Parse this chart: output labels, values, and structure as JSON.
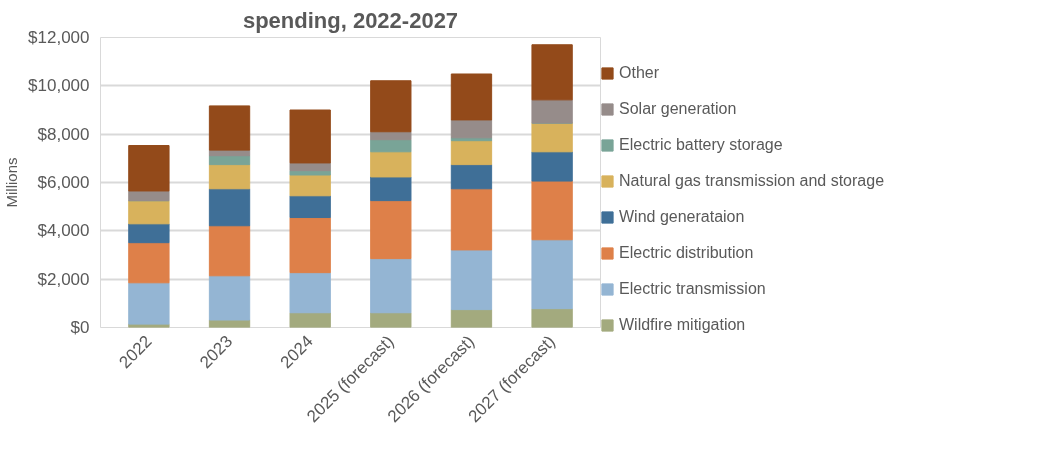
{
  "chart_data": {
    "type": "bar",
    "title": "spending, 2022-2027",
    "ylabel": "Millions",
    "categories": [
      "2022",
      "2023",
      "2024",
      "2025 (forecast)",
      "2026 (forecast)",
      "2027 (forecast)"
    ],
    "stacked": true,
    "series": [
      {
        "name": "Wildfire mitigation",
        "color": "#a3aa7e",
        "values": [
          140,
          310,
          610,
          610,
          740,
          780
        ]
      },
      {
        "name": "Electric transmission",
        "color": "#94b5d3",
        "values": [
          1710,
          1830,
          1660,
          2240,
          2470,
          2850
        ]
      },
      {
        "name": "Electric distribution",
        "color": "#de8049",
        "values": [
          1660,
          2070,
          2280,
          2400,
          2530,
          2430
        ]
      },
      {
        "name": "Wind generataion",
        "color": "#3f6f97",
        "values": [
          780,
          1530,
          900,
          980,
          1000,
          1210
        ]
      },
      {
        "name": "Natural gas transmission and storage",
        "color": "#d8b25c",
        "values": [
          960,
          1000,
          860,
          1040,
          990,
          1190
        ]
      },
      {
        "name": "Electric battery storage",
        "color": "#79a497",
        "values": [
          0,
          370,
          180,
          500,
          120,
          0
        ]
      },
      {
        "name": "Solar generation",
        "color": "#968c8a",
        "values": [
          400,
          230,
          320,
          330,
          740,
          960
        ]
      },
      {
        "name": "Other",
        "color": "#934a1a",
        "values": [
          1880,
          1830,
          2190,
          2110,
          1900,
          2280
        ]
      }
    ],
    "ylim": [
      0,
      12000
    ],
    "yticks": [
      {
        "value": 0,
        "label": "$0"
      },
      {
        "value": 2000,
        "label": "$2,000"
      },
      {
        "value": 4000,
        "label": "$4,000"
      },
      {
        "value": 6000,
        "label": "$6,000"
      },
      {
        "value": 8000,
        "label": "$8,000"
      },
      {
        "value": 10000,
        "label": "$10,000"
      },
      {
        "value": 12000,
        "label": "$12,000"
      }
    ],
    "grid": "y",
    "legend": "right"
  }
}
